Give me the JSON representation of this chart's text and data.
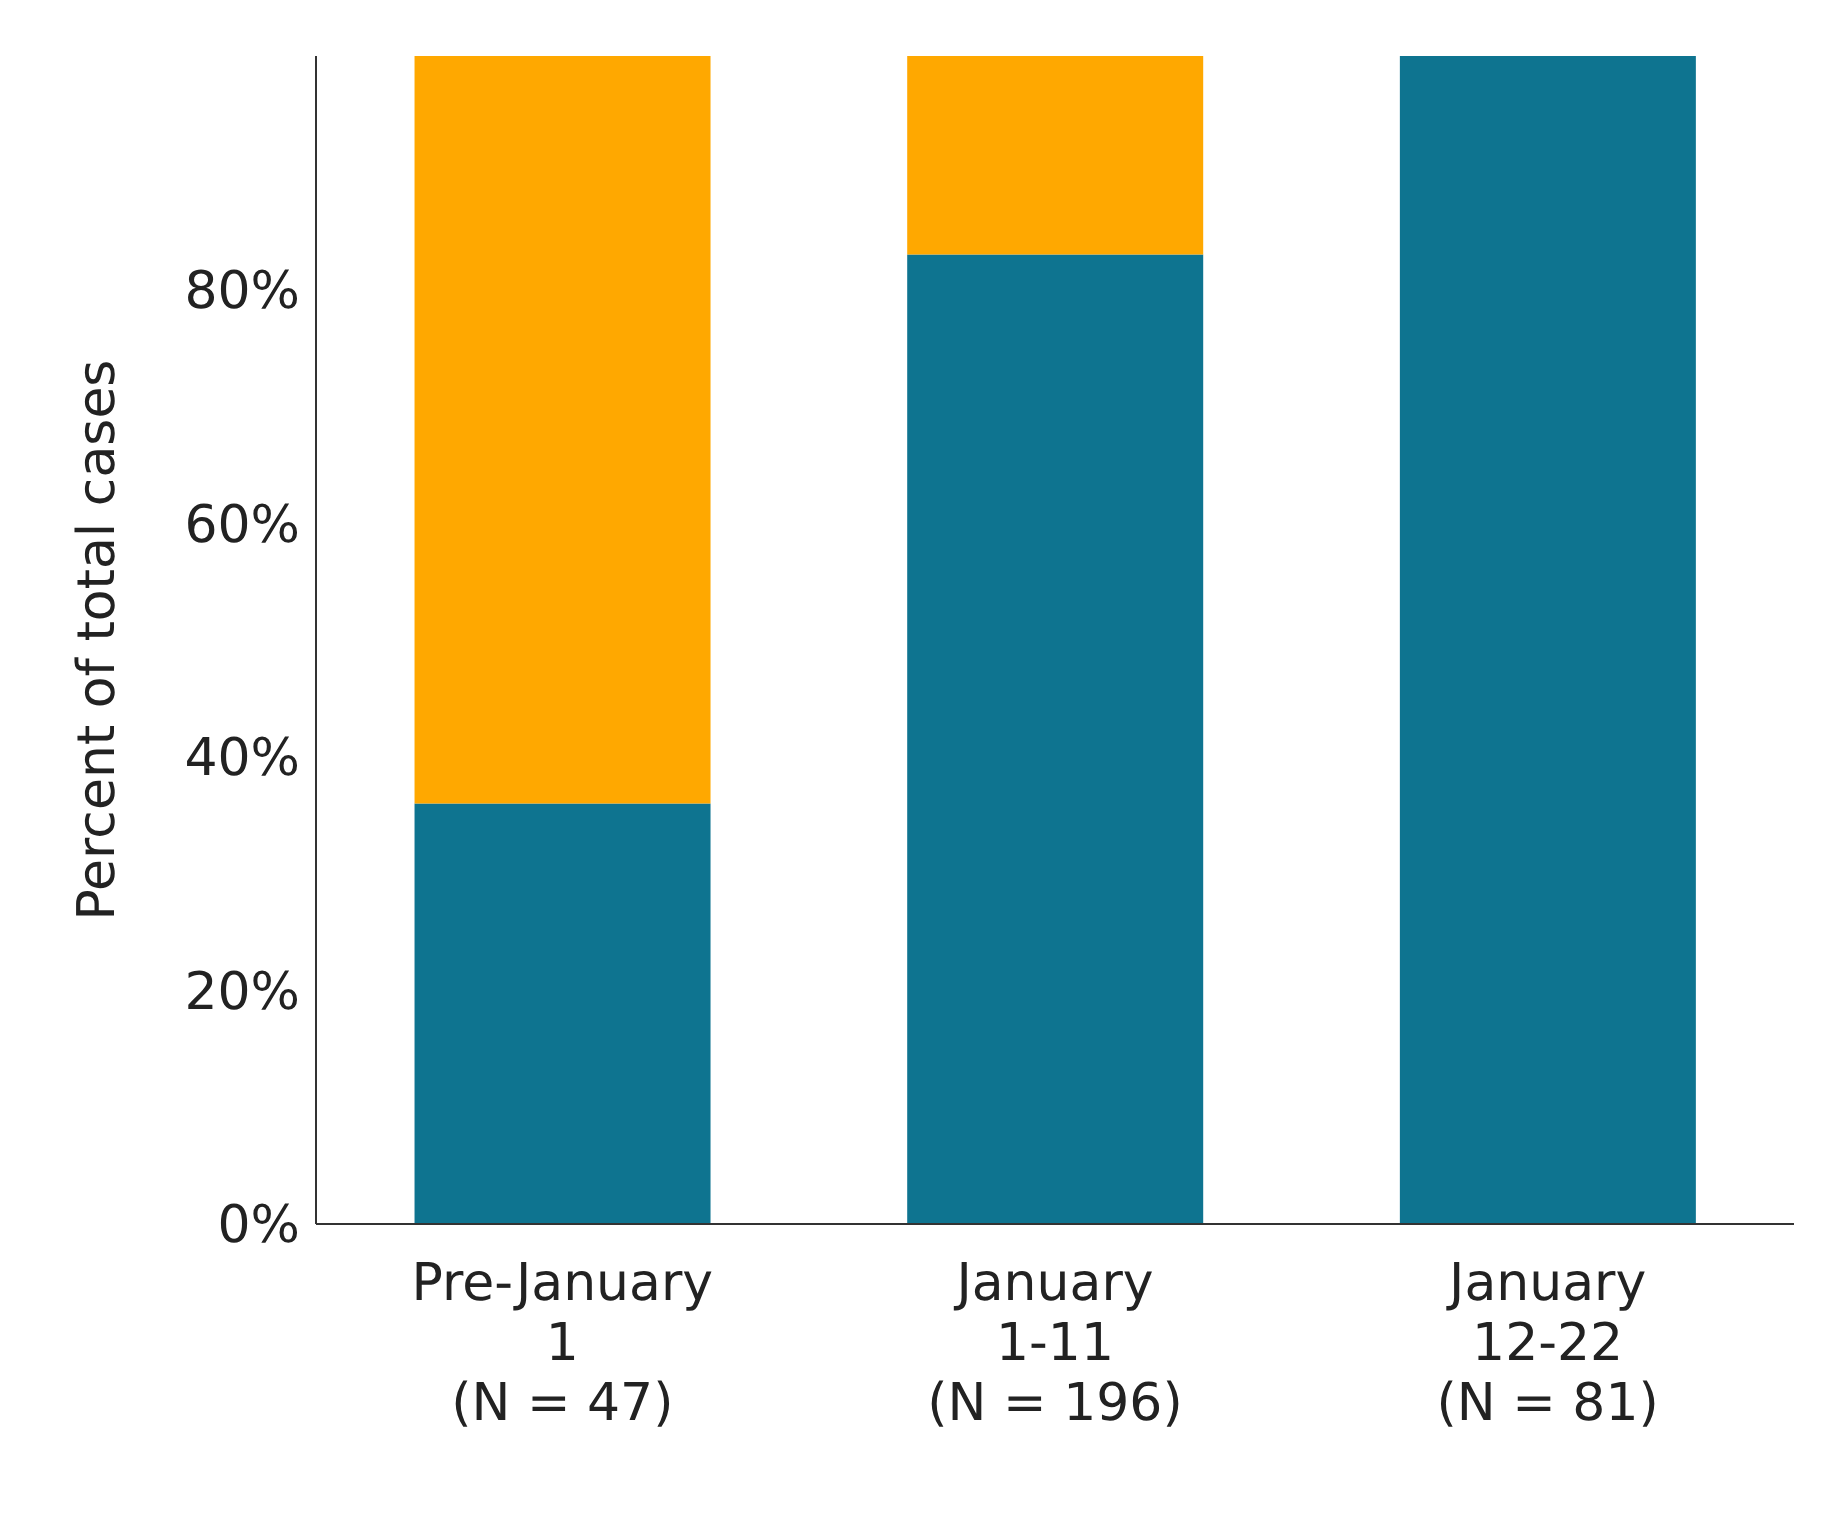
{
  "chart_data": {
    "type": "bar",
    "stacked": true,
    "ylabel": "Percent of total cases",
    "categories": [
      "Pre-January\n1\n(N = 47)",
      "January\n1-11\n(N = 196)",
      "January\n12-22\n(N = 81)"
    ],
    "series": [
      {
        "color": "#0e7490",
        "values": [
          36,
          83,
          100
        ]
      },
      {
        "color": "#ffa800",
        "values": [
          64,
          17,
          0
        ]
      }
    ],
    "ylim": [
      0,
      100
    ],
    "yticks": [
      {
        "value": 0,
        "label": "0%"
      },
      {
        "value": 20,
        "label": "20%"
      },
      {
        "value": 40,
        "label": "40%"
      },
      {
        "value": 60,
        "label": "60%"
      },
      {
        "value": 80,
        "label": "80%"
      }
    ],
    "grid": false,
    "legend": false
  }
}
